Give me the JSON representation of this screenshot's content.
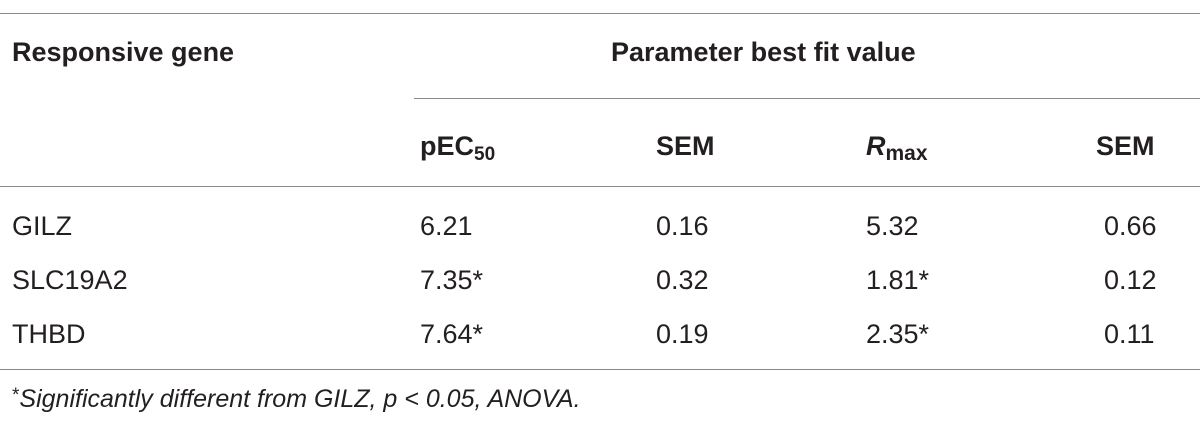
{
  "table": {
    "header": {
      "row_label": "Responsive gene",
      "group_label": "Parameter best fit value",
      "columns": {
        "pec50_main": "pEC",
        "pec50_sub": "50",
        "sem1": "SEM",
        "rmax_main": "R",
        "rmax_sub": "max",
        "sem2": "SEM"
      }
    },
    "rows": [
      {
        "gene": "GILZ",
        "pec50": "6.21",
        "sem1": "0.16",
        "rmax": "5.32",
        "sem2": "0.66"
      },
      {
        "gene": "SLC19A2",
        "pec50": "7.35*",
        "sem1": "0.32",
        "rmax": "1.81*",
        "sem2": "0.12"
      },
      {
        "gene": "THBD",
        "pec50": "7.64*",
        "sem1": "0.19",
        "rmax": "2.35*",
        "sem2": "0.11"
      }
    ],
    "footnote": {
      "marker": "*",
      "text": "Significantly different from GILZ, p < 0.05, ANOVA."
    }
  }
}
